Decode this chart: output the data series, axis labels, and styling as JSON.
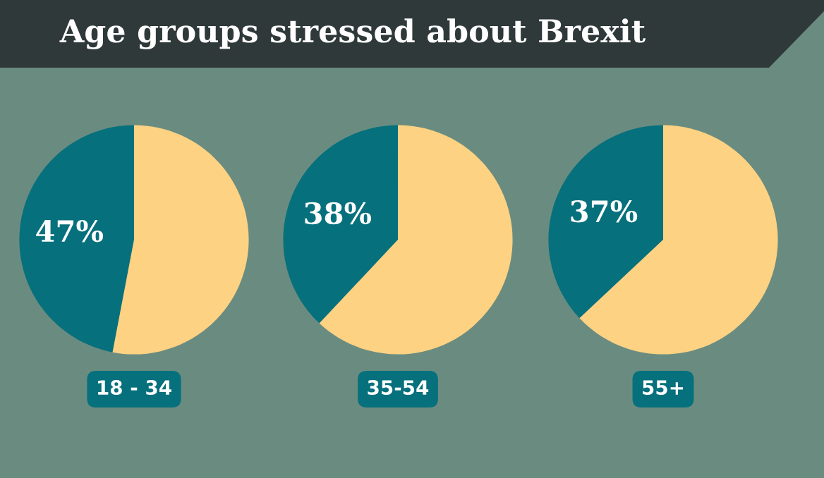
{
  "chart_data": [
    {
      "type": "pie",
      "title": "Age groups stressed about Brexit",
      "xlabel": "18 - 34",
      "categories": [
        null,
        null
      ],
      "values": [
        47,
        53
      ],
      "colors": [
        "#07707d",
        "#fdd283"
      ],
      "value_labels": [
        "47%",
        null
      ]
    },
    {
      "type": "pie",
      "xlabel": "35-54",
      "categories": [
        null,
        null
      ],
      "values": [
        38,
        62
      ],
      "colors": [
        "#07707d",
        "#fdd283"
      ],
      "value_labels": [
        "38%",
        null
      ]
    },
    {
      "type": "pie",
      "xlabel": "55+",
      "categories": [
        null,
        null
      ],
      "values": [
        37,
        63
      ],
      "colors": [
        "#07707d",
        "#fdd283"
      ],
      "value_labels": [
        "37%",
        null
      ]
    }
  ]
}
